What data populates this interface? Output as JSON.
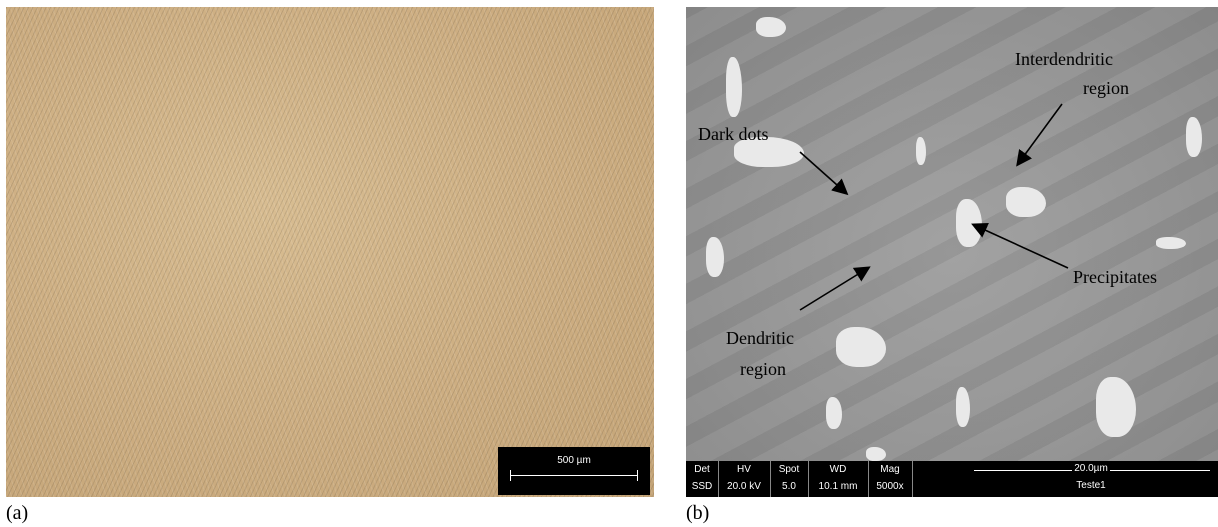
{
  "panel_a": {
    "label": "(a)",
    "scale_bar": "500 µm"
  },
  "panel_b": {
    "label": "(b)",
    "annotations": {
      "interdendritic_line1": "Interdendritic",
      "interdendritic_line2": "region",
      "dark_dots": "Dark dots",
      "precipitates": "Precipitates",
      "dendritic_line1": "Dendritic",
      "dendritic_line2": "region"
    },
    "info_bar": {
      "det_label": "Det",
      "det_value": "SSD",
      "hv_label": "HV",
      "hv_value": "20.0 kV",
      "spot_label": "Spot",
      "spot_value": "5.0",
      "wd_label": "WD",
      "wd_value": "10.1 mm",
      "mag_label": "Mag",
      "mag_value": "5000x",
      "scale_label": "20.0µm",
      "name": "Teste1"
    }
  }
}
